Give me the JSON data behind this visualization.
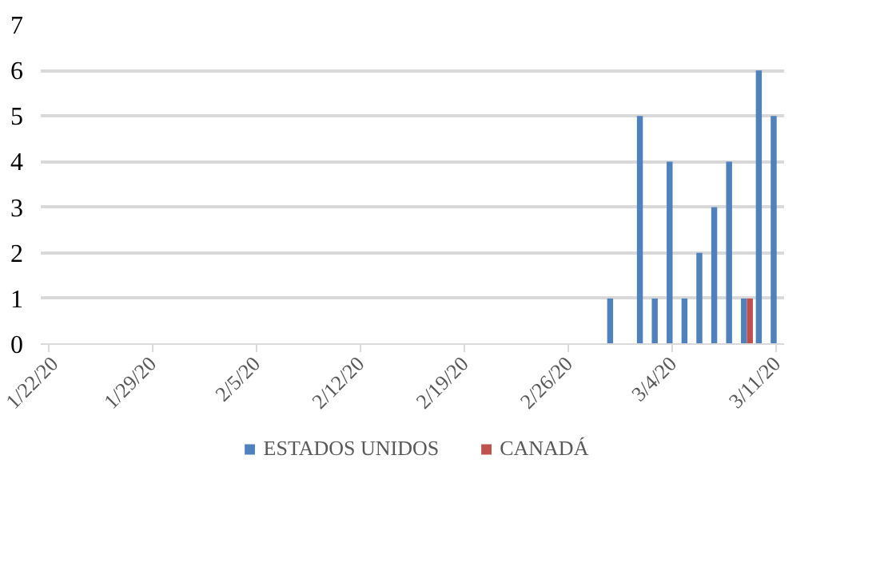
{
  "chart_data": {
    "type": "bar",
    "categories": [
      "1/22/20",
      null,
      null,
      null,
      null,
      null,
      null,
      "1/29/20",
      null,
      null,
      null,
      null,
      null,
      null,
      "2/5/20",
      null,
      null,
      null,
      null,
      null,
      null,
      "2/12/20",
      null,
      null,
      null,
      null,
      null,
      null,
      "2/19/20",
      null,
      null,
      null,
      null,
      null,
      null,
      "2/26/20",
      null,
      null,
      null,
      null,
      null,
      null,
      "3/4/20",
      null,
      null,
      null,
      null,
      null,
      null,
      "3/11/20"
    ],
    "series": [
      {
        "name": "ESTADOS UNIDOS",
        "color": "#4f81bd",
        "values": [
          0,
          0,
          0,
          0,
          0,
          0,
          0,
          0,
          0,
          0,
          0,
          0,
          0,
          0,
          0,
          0,
          0,
          0,
          0,
          0,
          0,
          0,
          0,
          0,
          0,
          0,
          0,
          0,
          0,
          0,
          0,
          0,
          0,
          0,
          0,
          0,
          0,
          0,
          1,
          0,
          5,
          1,
          4,
          1,
          2,
          3,
          4,
          1,
          6,
          5
        ]
      },
      {
        "name": "CANADÁ",
        "color": "#c0504d",
        "values": [
          0,
          0,
          0,
          0,
          0,
          0,
          0,
          0,
          0,
          0,
          0,
          0,
          0,
          0,
          0,
          0,
          0,
          0,
          0,
          0,
          0,
          0,
          0,
          0,
          0,
          0,
          0,
          0,
          0,
          0,
          0,
          0,
          0,
          0,
          0,
          0,
          0,
          0,
          0,
          0,
          0,
          0,
          0,
          0,
          0,
          0,
          0,
          1,
          0,
          0
        ]
      }
    ],
    "ylim": [
      0,
      7
    ],
    "yticks": [
      0,
      1,
      2,
      3,
      4,
      5,
      6,
      7
    ],
    "grid": "y",
    "legend": "bottom"
  }
}
